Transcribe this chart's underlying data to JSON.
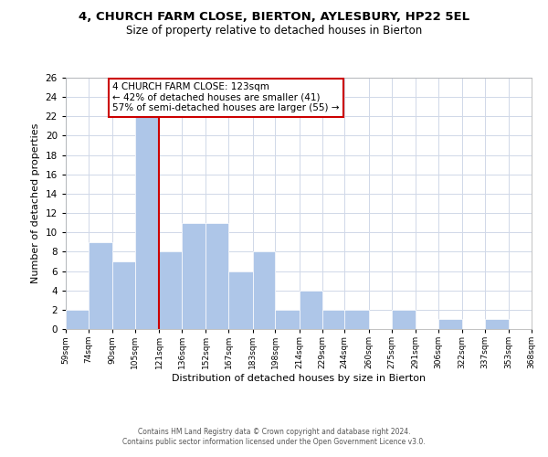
{
  "title": "4, CHURCH FARM CLOSE, BIERTON, AYLESBURY, HP22 5EL",
  "subtitle": "Size of property relative to detached houses in Bierton",
  "xlabel": "Distribution of detached houses by size in Bierton",
  "ylabel": "Number of detached properties",
  "footer_line1": "Contains HM Land Registry data © Crown copyright and database right 2024.",
  "footer_line2": "Contains public sector information licensed under the Open Government Licence v3.0.",
  "bin_edges": [
    59,
    74,
    90,
    105,
    121,
    136,
    152,
    167,
    183,
    198,
    214,
    229,
    244,
    260,
    275,
    291,
    306,
    322,
    337,
    353,
    368
  ],
  "bar_heights": [
    2,
    9,
    7,
    22,
    8,
    11,
    11,
    6,
    8,
    2,
    4,
    2,
    2,
    0,
    2,
    0,
    1,
    0,
    1,
    0
  ],
  "bar_color": "#aec6e8",
  "bar_edge_color": "#ffffff",
  "property_line_x": 121,
  "property_line_color": "#cc0000",
  "annotation_text_line1": "4 CHURCH FARM CLOSE: 123sqm",
  "annotation_text_line2": "← 42% of detached houses are smaller (41)",
  "annotation_text_line3": "57% of semi-detached houses are larger (55) →",
  "annotation_box_color": "#ffffff",
  "annotation_box_edge_color": "#cc0000",
  "ylim": [
    0,
    26
  ],
  "yticks": [
    0,
    2,
    4,
    6,
    8,
    10,
    12,
    14,
    16,
    18,
    20,
    22,
    24,
    26
  ],
  "grid_color": "#d0d8e8",
  "background_color": "#ffffff",
  "xlim_left": 59,
  "xlim_right": 368
}
